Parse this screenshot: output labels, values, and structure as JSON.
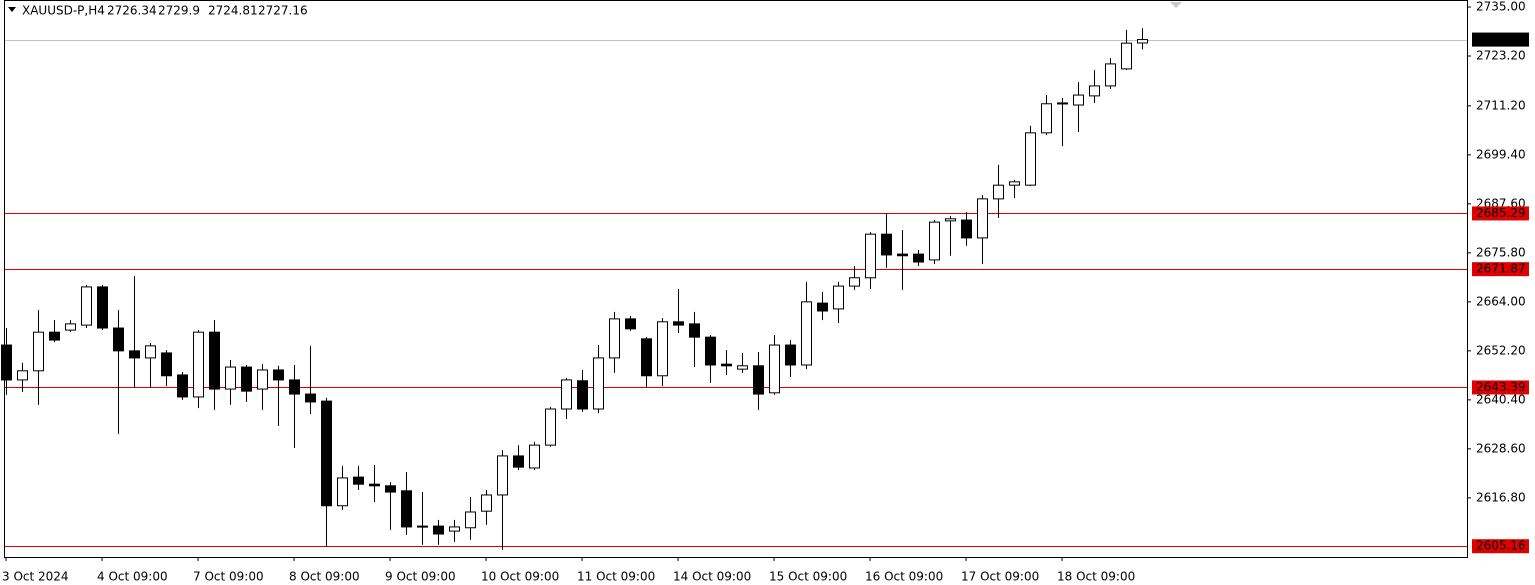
{
  "chart_data": {
    "type": "candlestick",
    "title": "XAUUSD-P,H4",
    "x": [
      "3 Oct 2024",
      null,
      null,
      null,
      null,
      null,
      "4 Oct 09:00",
      null,
      null,
      null,
      null,
      null,
      "7 Oct 09:00",
      null,
      null,
      null,
      null,
      null,
      "8 Oct 09:00",
      null,
      null,
      null,
      null,
      null,
      "9 Oct 09:00",
      null,
      null,
      null,
      null,
      null,
      "10 Oct 09:00",
      null,
      null,
      null,
      null,
      null,
      "11 Oct 09:00",
      null,
      null,
      null,
      null,
      null,
      "14 Oct 09:00",
      null,
      null,
      null,
      null,
      null,
      "15 Oct 09:00",
      null,
      null,
      null,
      null,
      null,
      "16 Oct 09:00",
      null,
      null,
      null,
      null,
      null,
      "17 Oct 09:00",
      null,
      null,
      null,
      null,
      null,
      "18 Oct 09:00",
      null,
      null,
      null,
      null,
      null
    ],
    "open": [
      2653.6,
      2645.2,
      2647.4,
      2656.7,
      2657.2,
      2658.4,
      2667.6,
      2657.7,
      2652.2,
      2650.5,
      2651.7,
      2646.4,
      2641.1,
      2656.7,
      2643.0,
      2648.3,
      2643.0,
      2647.6,
      2645.2,
      2641.8,
      2640.1,
      2614.9,
      2621.8,
      2620.1,
      2619.7,
      2618.5,
      2609.8,
      2610.0,
      2608.8,
      2609.6,
      2613.6,
      2617.5,
      2626.9,
      2624.0,
      2629.5,
      2638.2,
      2645.0,
      2638.2,
      2650.5,
      2659.9,
      2655.1,
      2646.2,
      2659.2,
      2658.7,
      2655.5,
      2649.0,
      2647.8,
      2648.6,
      2642.1,
      2653.6,
      2648.8,
      2663.7,
      2662.3,
      2667.8,
      2669.8,
      2680.3,
      2675.5,
      2675.5,
      2674.1,
      2683.5,
      2683.7,
      2679.4,
      2688.8,
      2692.1,
      2692.1,
      2704.7,
      2711.7,
      2711.4,
      2713.6,
      2716.0,
      2720.1,
      2726.34
    ],
    "high": [
      2657.7,
      2649.3,
      2662.0,
      2659.6,
      2659.6,
      2668.1,
      2668.1,
      2662.0,
      2670.2,
      2654.1,
      2652.4,
      2647.1,
      2657.2,
      2659.6,
      2650.0,
      2648.8,
      2649.0,
      2648.6,
      2648.8,
      2653.4,
      2640.9,
      2624.5,
      2624.5,
      2624.7,
      2620.6,
      2623.0,
      2618.2,
      2611.5,
      2611.5,
      2617.0,
      2618.7,
      2628.3,
      2629.5,
      2630.3,
      2638.7,
      2645.7,
      2647.6,
      2653.6,
      2661.6,
      2660.6,
      2655.5,
      2660.1,
      2667.1,
      2661.6,
      2656.0,
      2652.4,
      2651.7,
      2651.9,
      2656.0,
      2654.8,
      2668.8,
      2666.4,
      2668.8,
      2672.6,
      2680.8,
      2685.4,
      2681.3,
      2676.5,
      2683.7,
      2684.7,
      2685.6,
      2689.7,
      2697.0,
      2693.4,
      2706.4,
      2713.8,
      2713.1,
      2716.9,
      2719.8,
      2722.7,
      2729.5,
      2729.9
    ],
    "low": [
      2641.6,
      2642.3,
      2639.2,
      2654.3,
      2656.7,
      2657.7,
      2657.2,
      2632.2,
      2643.3,
      2643.3,
      2643.7,
      2640.4,
      2638.4,
      2638.0,
      2639.2,
      2639.9,
      2638.0,
      2634.1,
      2628.8,
      2637.0,
      2605.0,
      2613.9,
      2618.7,
      2615.8,
      2609.1,
      2607.9,
      2605.5,
      2605.5,
      2606.2,
      2606.7,
      2610.3,
      2604.3,
      2623.5,
      2623.5,
      2629.1,
      2635.8,
      2637.5,
      2637.2,
      2646.9,
      2657.0,
      2643.5,
      2643.7,
      2656.5,
      2648.3,
      2644.5,
      2646.4,
      2646.9,
      2638.0,
      2641.6,
      2645.9,
      2647.8,
      2659.6,
      2658.9,
      2666.9,
      2667.1,
      2672.2,
      2666.9,
      2672.6,
      2673.1,
      2675.1,
      2677.5,
      2673.1,
      2684.2,
      2689.0,
      2691.9,
      2704.2,
      2701.5,
      2704.9,
      2711.9,
      2715.3,
      2719.8,
      2724.81
    ],
    "close": [
      2645.2,
      2647.4,
      2656.7,
      2654.8,
      2658.7,
      2667.6,
      2657.7,
      2652.2,
      2650.5,
      2653.4,
      2646.2,
      2641.1,
      2656.7,
      2643.0,
      2648.3,
      2642.5,
      2647.6,
      2645.2,
      2641.8,
      2639.9,
      2614.9,
      2621.6,
      2620.1,
      2619.7,
      2618.2,
      2609.8,
      2610.0,
      2608.1,
      2609.8,
      2613.4,
      2617.5,
      2626.9,
      2624.2,
      2629.5,
      2638.2,
      2645.2,
      2638.2,
      2650.5,
      2659.9,
      2657.5,
      2646.2,
      2659.2,
      2658.4,
      2655.5,
      2648.8,
      2648.6,
      2648.6,
      2641.8,
      2653.6,
      2648.8,
      2664.0,
      2661.8,
      2667.8,
      2669.8,
      2680.3,
      2675.3,
      2675.1,
      2673.6,
      2683.2,
      2684.0,
      2679.4,
      2688.8,
      2692.1,
      2692.9,
      2704.7,
      2711.7,
      2711.9,
      2713.8,
      2716.0,
      2721.3,
      2726.3,
      2727.16
    ],
    "up_color": "#ffffff",
    "down_color": "#000000",
    "ylim": [
      2602.56,
      2736.69
    ],
    "yticks": [
      {
        "value": 2735,
        "label": "2735.00"
      },
      {
        "value": 2723.2,
        "label": "2723.20"
      },
      {
        "value": 2711.2,
        "label": "2711.20"
      },
      {
        "value": 2699.4,
        "label": "2699.40"
      },
      {
        "value": 2687.6,
        "label": "2687.60"
      },
      {
        "value": 2675.8,
        "label": "2675.80"
      },
      {
        "value": 2664,
        "label": "2664.00"
      },
      {
        "value": 2652.2,
        "label": "2652.20"
      },
      {
        "value": 2640.4,
        "label": "2640.40"
      },
      {
        "value": 2628.6,
        "label": "2628.60"
      },
      {
        "value": 2616.8,
        "label": "2616.80"
      }
    ],
    "hlines": [
      2727.16,
      2685.29,
      2671.87,
      2643.39,
      2605.16
    ],
    "hline_colors": [
      "#c0c0c0",
      "#e00000",
      "#e00000",
      "#e00000",
      "#e00000"
    ],
    "hline_label_colors": [
      "#000000",
      "#e00000",
      "#e00000",
      "#e00000",
      "#e00000"
    ]
  }
}
